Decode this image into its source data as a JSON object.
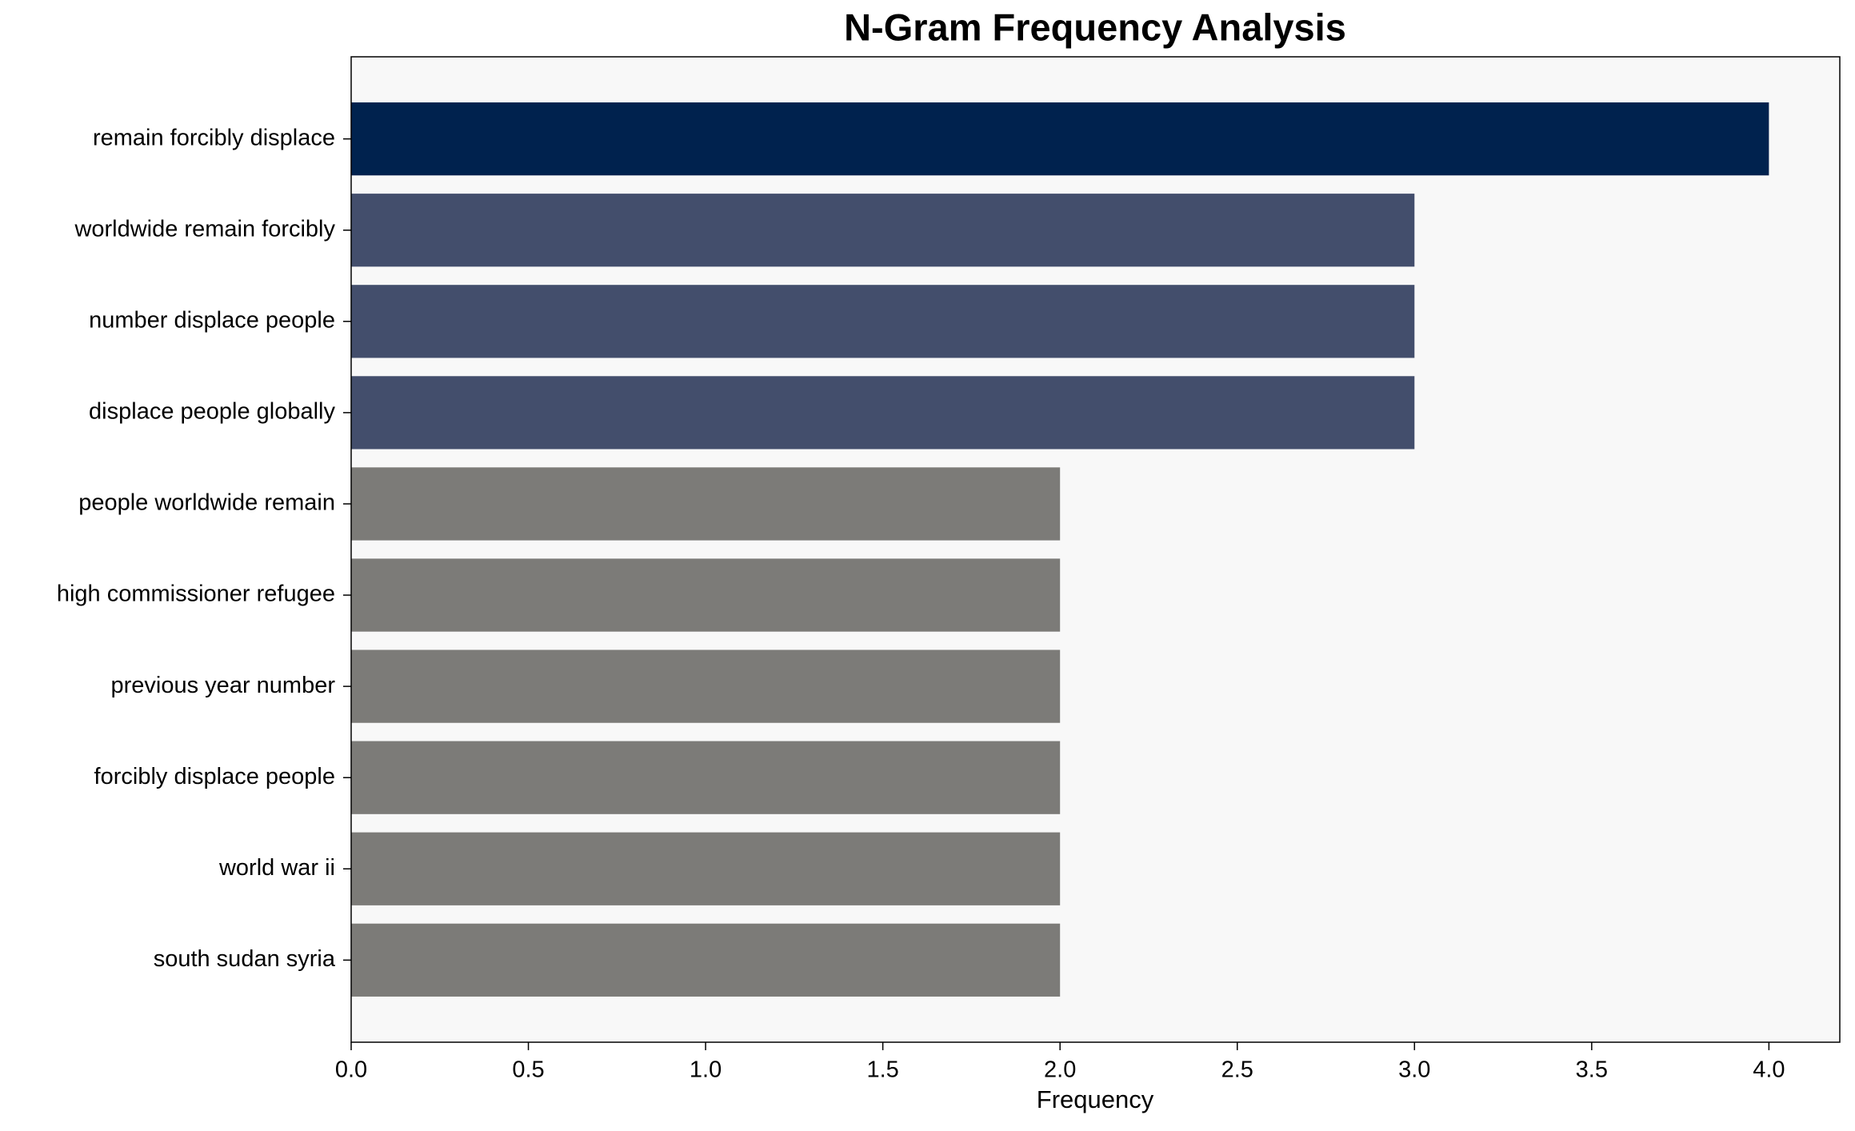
{
  "chart_data": {
    "type": "barh",
    "title": "N-Gram Frequency Analysis",
    "x_label": "Frequency",
    "categories": [
      "remain forcibly displace",
      "worldwide remain forcibly",
      "number displace people",
      "displace people globally",
      "people worldwide remain",
      "high commissioner refugee",
      "previous year number",
      "forcibly displace people",
      "world war ii",
      "south sudan syria"
    ],
    "values": [
      4,
      3,
      3,
      3,
      2,
      2,
      2,
      2,
      2,
      2
    ],
    "colors": [
      "#00224e",
      "#434e6c",
      "#434e6c",
      "#434e6c",
      "#7c7b78",
      "#7c7b78",
      "#7c7b78",
      "#7c7b78",
      "#7c7b78",
      "#7c7b78"
    ],
    "xlim": [
      0,
      4.2
    ],
    "xticks": [
      {
        "value": 0,
        "label": "0.0"
      },
      {
        "value": 0.5,
        "label": "0.5"
      },
      {
        "value": 1,
        "label": "1.0"
      },
      {
        "value": 1.5,
        "label": "1.5"
      },
      {
        "value": 2,
        "label": "2.0"
      },
      {
        "value": 2.5,
        "label": "2.5"
      },
      {
        "value": 3,
        "label": "3.0"
      },
      {
        "value": 3.5,
        "label": "3.5"
      },
      {
        "value": 4,
        "label": "4.0"
      }
    ],
    "grid": false
  }
}
